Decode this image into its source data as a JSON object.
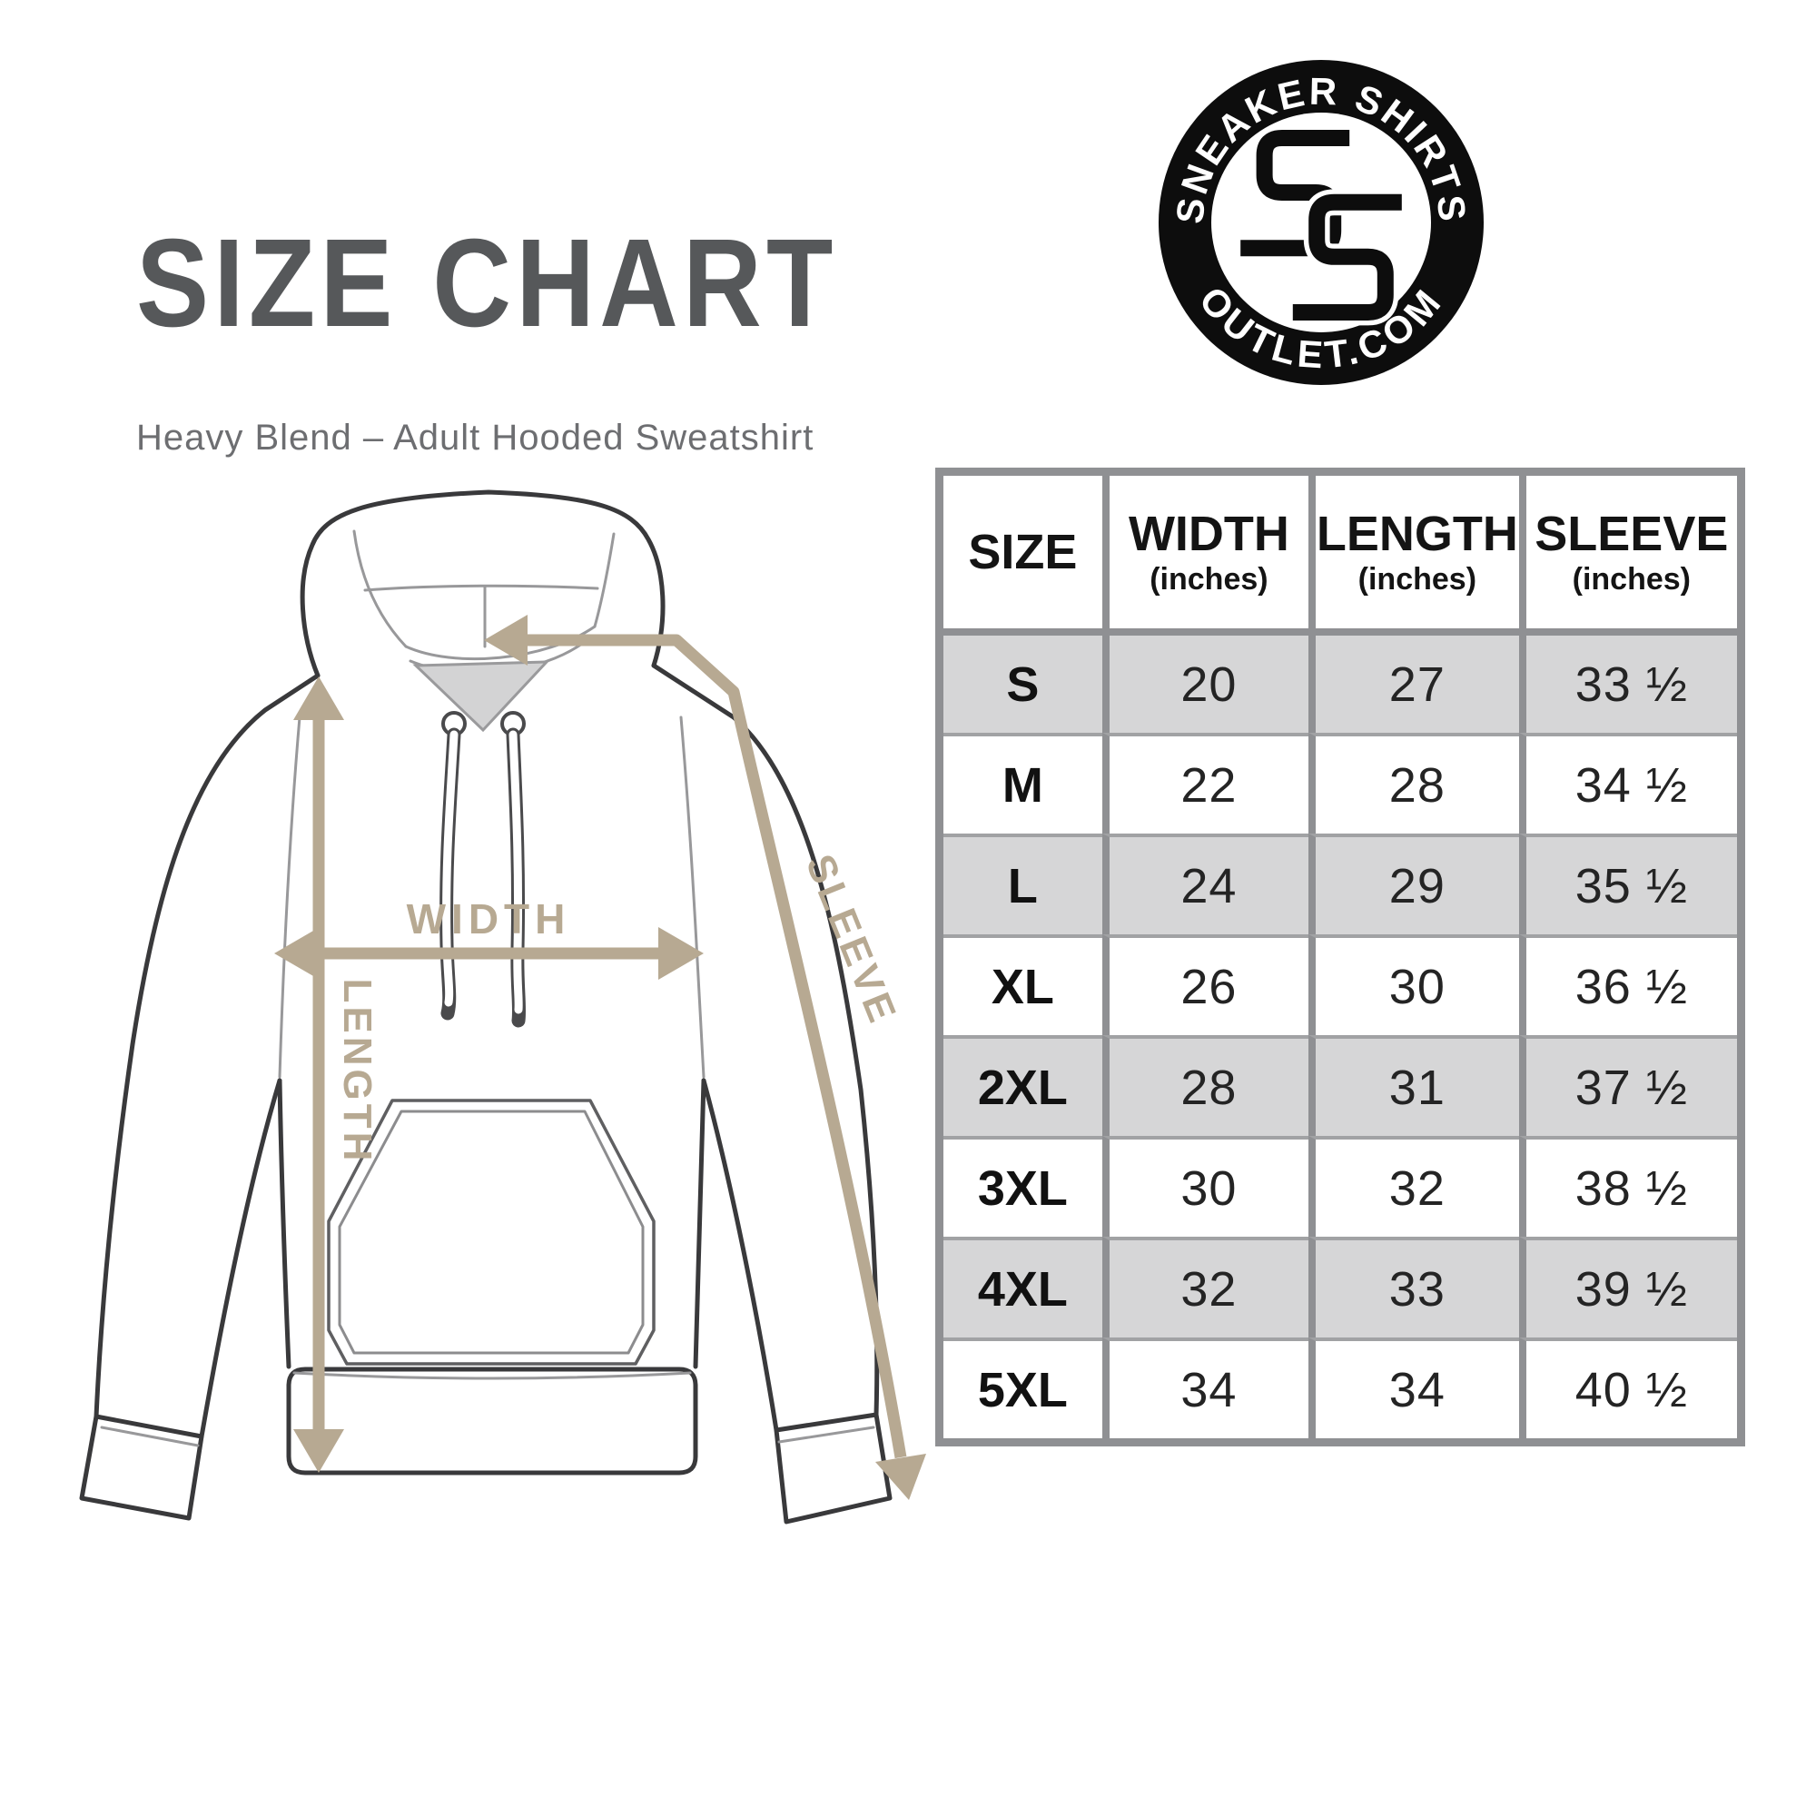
{
  "header": {
    "title": "SIZE CHART",
    "subtitle": "Heavy Blend – Adult Hooded Sweatshirt"
  },
  "logo": {
    "arc_top": "SNEAKER SHIRTS",
    "arc_bottom": "OUTLET.COM",
    "monogram_letters": "SS"
  },
  "diagram": {
    "garment": "hooded sweatshirt",
    "width_label": "WIDTH",
    "length_label": "LENGTH",
    "sleeve_label": "SLEEVE",
    "arrow_color": "#b7a992"
  },
  "table": {
    "columns": [
      {
        "label": "SIZE",
        "unit": ""
      },
      {
        "label": "WIDTH",
        "unit": "(inches)"
      },
      {
        "label": "LENGTH",
        "unit": "(inches)"
      },
      {
        "label": "SLEEVE",
        "unit": "(inches)"
      }
    ],
    "rows": [
      {
        "size": "S",
        "width": "20",
        "length": "27",
        "sleeve": "33 ½"
      },
      {
        "size": "M",
        "width": "22",
        "length": "28",
        "sleeve": "34 ½"
      },
      {
        "size": "L",
        "width": "24",
        "length": "29",
        "sleeve": "35 ½"
      },
      {
        "size": "XL",
        "width": "26",
        "length": "30",
        "sleeve": "36 ½"
      },
      {
        "size": "2XL",
        "width": "28",
        "length": "31",
        "sleeve": "37 ½"
      },
      {
        "size": "3XL",
        "width": "30",
        "length": "32",
        "sleeve": "38 ½"
      },
      {
        "size": "4XL",
        "width": "32",
        "length": "33",
        "sleeve": "39 ½"
      },
      {
        "size": "5XL",
        "width": "34",
        "length": "34",
        "sleeve": "40 ½"
      }
    ]
  },
  "colors": {
    "title_grey": "#56585a",
    "subtitle_grey": "#6d6e71",
    "table_border": "#8f9093",
    "row_alt_grey": "#d6d6d7",
    "arrow_tan": "#b7a992",
    "logo_black": "#0d0d0d"
  }
}
